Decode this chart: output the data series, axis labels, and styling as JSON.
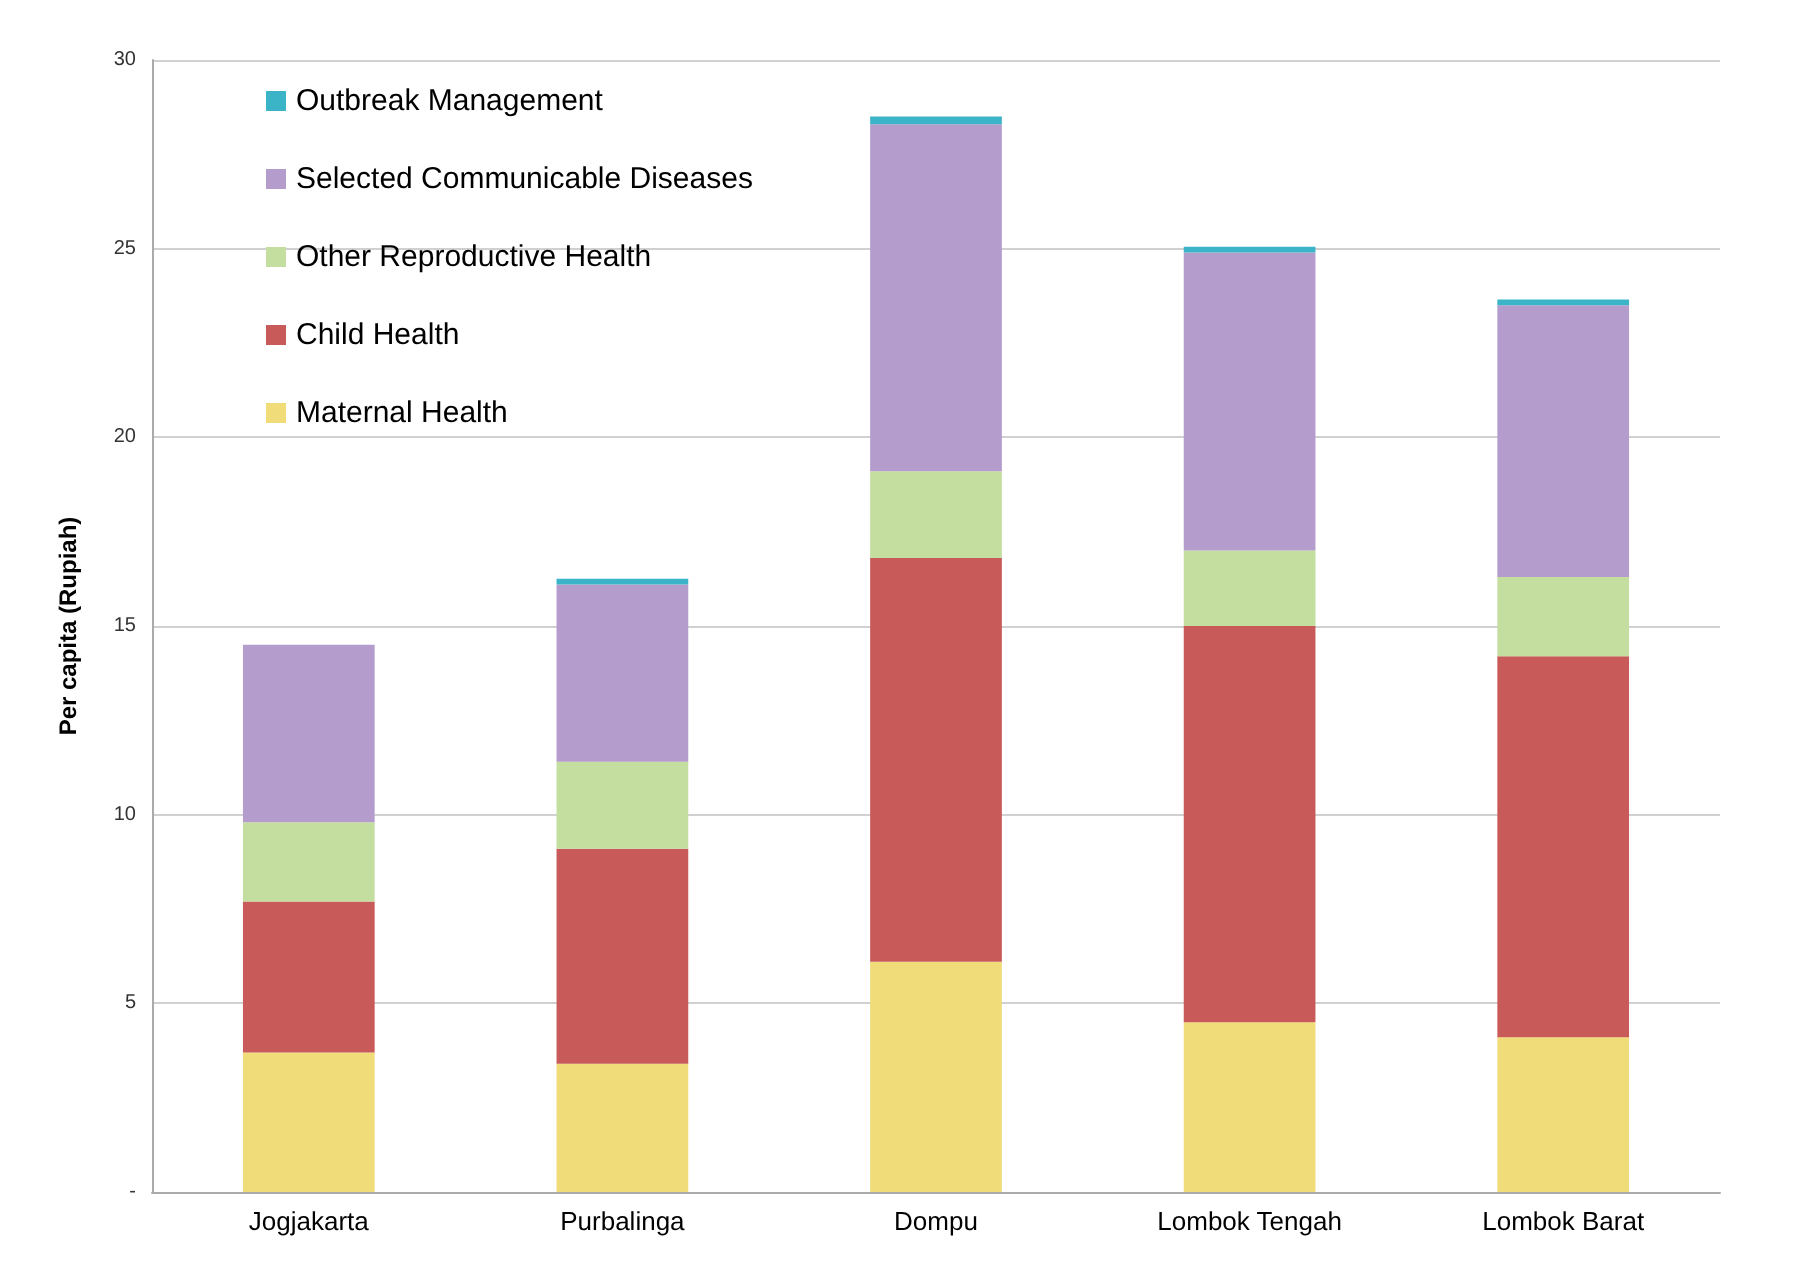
{
  "chart_data": {
    "type": "bar",
    "stacked": true,
    "ylabel": "Per capita (Rupiah)",
    "categories": [
      "Jogjakarta",
      "Purbalinga",
      "Dompu",
      "Lombok Tengah",
      "Lombok Barat"
    ],
    "series": [
      {
        "name": "Maternal Health",
        "color": "#f0dc78",
        "values": [
          3.7,
          3.4,
          6.1,
          4.5,
          4.1
        ]
      },
      {
        "name": "Child Health",
        "color": "#c85a5a",
        "values": [
          4.0,
          5.7,
          10.7,
          10.5,
          10.1
        ]
      },
      {
        "name": "Other Reproductive Health",
        "color": "#c4dea0",
        "values": [
          2.1,
          2.3,
          2.3,
          2.0,
          2.1
        ]
      },
      {
        "name": "Selected Communicable Diseases",
        "color": "#b49ccc",
        "values": [
          4.7,
          4.7,
          9.2,
          7.9,
          7.2
        ]
      },
      {
        "name": "Outbreak Management",
        "color": "#3cb4c8",
        "values": [
          0,
          0.15,
          0.2,
          0.15,
          0.15
        ]
      }
    ],
    "ylim": [
      0,
      30
    ],
    "yticks": [
      {
        "value": 0,
        "label": "-"
      },
      5,
      10,
      15,
      20,
      25,
      30
    ],
    "grid": "y",
    "legend": "top left"
  }
}
